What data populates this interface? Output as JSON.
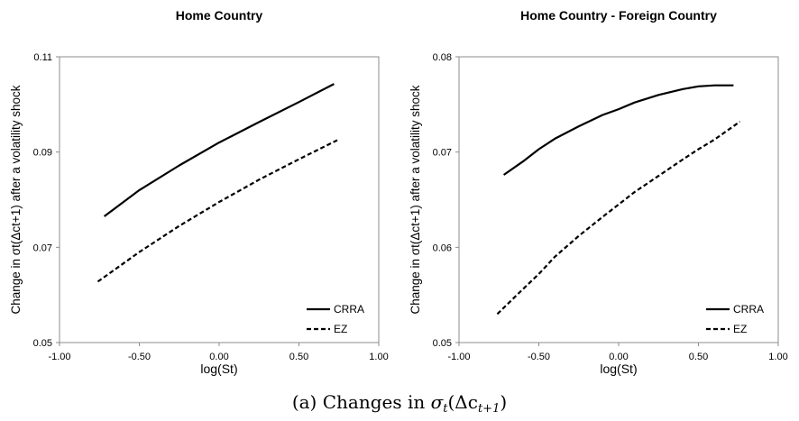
{
  "caption": {
    "label": "(a) Changes in ",
    "math_symbol": "σ",
    "math_sub": "t",
    "math_arg": "(Δc",
    "math_arg_sub": "t+1",
    "math_close": ")"
  },
  "chart_data": [
    {
      "type": "line",
      "title": "Home Country",
      "xlabel": "log(St)",
      "ylabel": "Change in σt(Δct+1) after a volatility shock",
      "xlim": [
        -1.0,
        1.0
      ],
      "ylim": [
        0.05,
        0.11
      ],
      "xticks": [
        -1.0,
        -0.5,
        0.0,
        0.5,
        1.0
      ],
      "xtick_labels": [
        "-1.00",
        "-0.50",
        "0.00",
        "0.50",
        "1.00"
      ],
      "yticks": [
        0.05,
        0.07,
        0.09,
        0.11
      ],
      "ytick_labels": [
        "0.05",
        "0.07",
        "0.09",
        "0.11"
      ],
      "grid": false,
      "legend_position": "bottom-right",
      "series": [
        {
          "name": "CRRA",
          "style": "solid",
          "color": "#000000",
          "x": [
            -0.72,
            -0.5,
            -0.25,
            0.0,
            0.25,
            0.5,
            0.72
          ],
          "y": [
            0.0765,
            0.082,
            0.0872,
            0.092,
            0.0963,
            0.1005,
            0.1043
          ]
        },
        {
          "name": "EZ",
          "style": "dashed",
          "color": "#000000",
          "x": [
            -0.76,
            -0.5,
            -0.25,
            0.0,
            0.25,
            0.5,
            0.74
          ],
          "y": [
            0.0628,
            0.069,
            0.0745,
            0.0795,
            0.0842,
            0.0885,
            0.0925
          ]
        }
      ]
    },
    {
      "type": "line",
      "title": "Home Country - Foreign Country",
      "xlabel": "log(St)",
      "ylabel": "Change in σt(Δct+1) after a volatility shock",
      "xlim": [
        -1.0,
        1.0
      ],
      "ylim": [
        0.05,
        0.08
      ],
      "xticks": [
        -1.0,
        -0.5,
        0.0,
        0.5,
        1.0
      ],
      "xtick_labels": [
        "-1.00",
        "-0.50",
        "0.00",
        "0.50",
        "1.00"
      ],
      "yticks": [
        0.05,
        0.06,
        0.07,
        0.08
      ],
      "ytick_labels": [
        "0.05",
        "0.06",
        "0.07",
        "0.08"
      ],
      "grid": false,
      "legend_position": "bottom-right",
      "series": [
        {
          "name": "CRRA",
          "style": "solid",
          "color": "#000000",
          "x": [
            -0.72,
            -0.6,
            -0.5,
            -0.4,
            -0.25,
            -0.1,
            0.0,
            0.1,
            0.25,
            0.4,
            0.5,
            0.6,
            0.72
          ],
          "y": [
            0.0676,
            0.069,
            0.0703,
            0.0714,
            0.0727,
            0.0739,
            0.0745,
            0.0752,
            0.076,
            0.0766,
            0.0769,
            0.077,
            0.077
          ]
        },
        {
          "name": "EZ",
          "style": "dashed",
          "color": "#000000",
          "x": [
            -0.76,
            -0.6,
            -0.5,
            -0.4,
            -0.25,
            -0.1,
            0.0,
            0.1,
            0.25,
            0.4,
            0.5,
            0.6,
            0.76
          ],
          "y": [
            0.053,
            0.0556,
            0.0572,
            0.059,
            0.0612,
            0.0632,
            0.0645,
            0.0658,
            0.0675,
            0.0692,
            0.0703,
            0.0713,
            0.0732
          ]
        }
      ]
    }
  ]
}
